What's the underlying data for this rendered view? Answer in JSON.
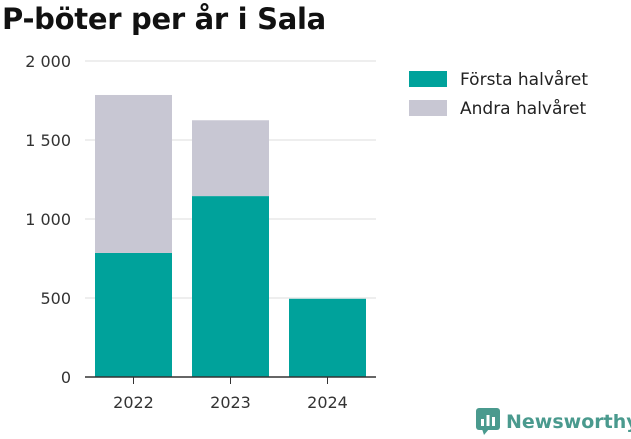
{
  "title": "P-böter per år i Sala",
  "brand": {
    "name": "Newsworthy",
    "color": "#4a9a8e",
    "icon": "newsworthy-logo-icon"
  },
  "chart_data": {
    "type": "bar",
    "stacked": true,
    "categories": [
      "2022",
      "2023",
      "2024"
    ],
    "series": [
      {
        "name": "Första halvåret",
        "color": "#00a29b",
        "values": [
          785,
          1145,
          495
        ]
      },
      {
        "name": "Andra halvåret",
        "color": "#c8c7d3",
        "values": [
          1000,
          480,
          0
        ]
      }
    ],
    "ylim": [
      0,
      2000
    ],
    "yticks": [
      {
        "value": 0,
        "label": "0"
      },
      {
        "value": 500,
        "label": "500"
      },
      {
        "value": 1000,
        "label": "1 000"
      },
      {
        "value": 1500,
        "label": "1 500"
      },
      {
        "value": 2000,
        "label": "2 000"
      }
    ],
    "grid": true,
    "legend": "top-right",
    "xlabel": "",
    "ylabel": ""
  }
}
